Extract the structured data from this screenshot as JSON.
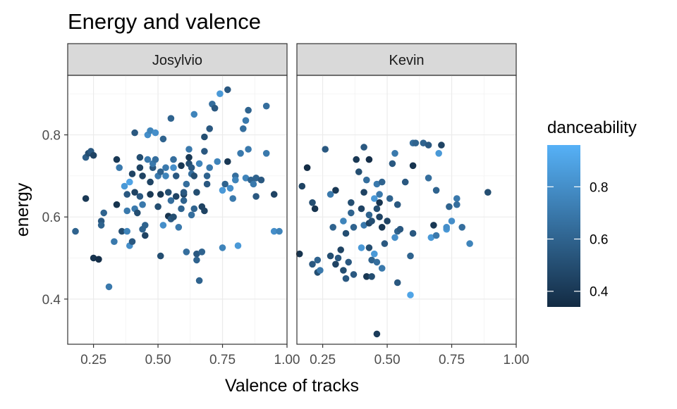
{
  "chart_data": {
    "type": "scatter",
    "title": "Energy and valence",
    "xlabel": "Valence of tracks",
    "ylabel": "energy",
    "xlim": [
      0.15,
      1.0
    ],
    "ylim": [
      0.29,
      0.945
    ],
    "x_ticks": [
      0.25,
      0.5,
      0.75,
      1.0
    ],
    "x_tick_labels": [
      "0.25",
      "0.50",
      "0.75",
      "1.00"
    ],
    "y_ticks": [
      0.4,
      0.6,
      0.8
    ],
    "y_tick_labels": [
      "0.4",
      "0.6",
      "0.8"
    ],
    "grid": true,
    "legend": {
      "title": "danceability",
      "position": "right",
      "type": "colorbar",
      "range": [
        0.34,
        0.96
      ],
      "ticks": [
        0.4,
        0.6,
        0.8
      ],
      "tick_labels": [
        "0.4",
        "0.6",
        "0.8"
      ],
      "low_color": "#132B43",
      "high_color": "#56B1F7"
    },
    "panels": [
      {
        "name": "Josylvio",
        "points": [
          [
            0.18,
            0.565,
            0.6
          ],
          [
            0.22,
            0.745,
            0.58
          ],
          [
            0.22,
            0.645,
            0.4
          ],
          [
            0.23,
            0.755,
            0.5
          ],
          [
            0.24,
            0.76,
            0.55
          ],
          [
            0.25,
            0.75,
            0.45
          ],
          [
            0.25,
            0.5,
            0.38
          ],
          [
            0.27,
            0.497,
            0.36
          ],
          [
            0.28,
            0.59,
            0.55
          ],
          [
            0.28,
            0.58,
            0.6
          ],
          [
            0.29,
            0.61,
            0.6
          ],
          [
            0.31,
            0.43,
            0.7
          ],
          [
            0.33,
            0.54,
            0.7
          ],
          [
            0.34,
            0.74,
            0.4
          ],
          [
            0.34,
            0.63,
            0.38
          ],
          [
            0.35,
            0.72,
            0.7
          ],
          [
            0.36,
            0.565,
            0.5
          ],
          [
            0.37,
            0.675,
            0.85
          ],
          [
            0.38,
            0.655,
            0.55
          ],
          [
            0.38,
            0.615,
            0.7
          ],
          [
            0.38,
            0.565,
            0.75
          ],
          [
            0.39,
            0.53,
            0.8
          ],
          [
            0.39,
            0.685,
            0.9
          ],
          [
            0.4,
            0.705,
            0.45
          ],
          [
            0.4,
            0.54,
            0.55
          ],
          [
            0.41,
            0.66,
            0.45
          ],
          [
            0.41,
            0.805,
            0.55
          ],
          [
            0.41,
            0.62,
            0.7
          ],
          [
            0.42,
            0.61,
            0.5
          ],
          [
            0.43,
            0.745,
            0.5
          ],
          [
            0.43,
            0.72,
            0.45
          ],
          [
            0.43,
            0.65,
            0.55
          ],
          [
            0.44,
            0.7,
            0.45
          ],
          [
            0.44,
            0.63,
            0.7
          ],
          [
            0.44,
            0.57,
            0.6
          ],
          [
            0.45,
            0.555,
            0.45
          ],
          [
            0.45,
            0.58,
            0.6
          ],
          [
            0.46,
            0.74,
            0.7
          ],
          [
            0.46,
            0.8,
            0.8
          ],
          [
            0.47,
            0.81,
            0.75
          ],
          [
            0.47,
            0.685,
            0.45
          ],
          [
            0.47,
            0.655,
            0.4
          ],
          [
            0.48,
            0.72,
            0.55
          ],
          [
            0.48,
            0.73,
            0.7
          ],
          [
            0.49,
            0.805,
            0.8
          ],
          [
            0.49,
            0.74,
            0.65
          ],
          [
            0.5,
            0.7,
            0.7
          ],
          [
            0.5,
            0.625,
            0.5
          ],
          [
            0.51,
            0.71,
            0.6
          ],
          [
            0.51,
            0.655,
            0.4
          ],
          [
            0.51,
            0.505,
            0.5
          ],
          [
            0.52,
            0.79,
            0.6
          ],
          [
            0.52,
            0.58,
            0.8
          ],
          [
            0.53,
            0.72,
            0.7
          ],
          [
            0.53,
            0.7,
            0.75
          ],
          [
            0.54,
            0.66,
            0.5
          ],
          [
            0.54,
            0.602,
            0.38
          ],
          [
            0.55,
            0.84,
            0.6
          ],
          [
            0.55,
            0.64,
            0.65
          ],
          [
            0.55,
            0.595,
            0.55
          ],
          [
            0.56,
            0.72,
            0.8
          ],
          [
            0.56,
            0.74,
            0.65
          ],
          [
            0.56,
            0.6,
            0.5
          ],
          [
            0.57,
            0.7,
            0.55
          ],
          [
            0.57,
            0.65,
            0.45
          ],
          [
            0.58,
            0.575,
            0.7
          ],
          [
            0.59,
            0.725,
            0.4
          ],
          [
            0.59,
            0.62,
            0.6
          ],
          [
            0.6,
            0.655,
            0.45
          ],
          [
            0.6,
            0.66,
            0.55
          ],
          [
            0.6,
            0.64,
            0.6
          ],
          [
            0.61,
            0.68,
            0.65
          ],
          [
            0.61,
            0.515,
            0.65
          ],
          [
            0.62,
            0.765,
            0.7
          ],
          [
            0.62,
            0.73,
            0.5
          ],
          [
            0.62,
            0.745,
            0.4
          ],
          [
            0.63,
            0.72,
            0.55
          ],
          [
            0.63,
            0.705,
            0.65
          ],
          [
            0.63,
            0.605,
            0.65
          ],
          [
            0.64,
            0.85,
            0.75
          ],
          [
            0.64,
            0.7,
            0.5
          ],
          [
            0.64,
            0.62,
            0.6
          ],
          [
            0.65,
            0.66,
            0.5
          ],
          [
            0.65,
            0.51,
            0.55
          ],
          [
            0.65,
            0.495,
            0.6
          ],
          [
            0.66,
            0.73,
            0.75
          ],
          [
            0.66,
            0.445,
            0.6
          ],
          [
            0.67,
            0.625,
            0.45
          ],
          [
            0.67,
            0.515,
            0.6
          ],
          [
            0.68,
            0.795,
            0.5
          ],
          [
            0.68,
            0.76,
            0.55
          ],
          [
            0.68,
            0.615,
            0.45
          ],
          [
            0.69,
            0.7,
            0.6
          ],
          [
            0.69,
            0.68,
            0.55
          ],
          [
            0.7,
            0.815,
            0.55
          ],
          [
            0.7,
            0.72,
            0.7
          ],
          [
            0.71,
            0.875,
            0.65
          ],
          [
            0.72,
            0.865,
            0.55
          ],
          [
            0.73,
            0.735,
            0.75
          ],
          [
            0.74,
            0.9,
            0.85
          ],
          [
            0.75,
            0.665,
            0.85
          ],
          [
            0.75,
            0.525,
            0.75
          ],
          [
            0.76,
            0.68,
            0.6
          ],
          [
            0.77,
            0.91,
            0.55
          ],
          [
            0.77,
            0.735,
            0.4
          ],
          [
            0.78,
            0.67,
            0.8
          ],
          [
            0.79,
            0.645,
            0.7
          ],
          [
            0.8,
            0.7,
            0.65
          ],
          [
            0.8,
            0.69,
            0.75
          ],
          [
            0.81,
            0.53,
            0.85
          ],
          [
            0.82,
            0.755,
            0.7
          ],
          [
            0.83,
            0.815,
            0.65
          ],
          [
            0.84,
            0.695,
            0.75
          ],
          [
            0.84,
            0.835,
            0.7
          ],
          [
            0.85,
            0.86,
            0.6
          ],
          [
            0.85,
            0.765,
            0.7
          ],
          [
            0.86,
            0.69,
            0.6
          ],
          [
            0.87,
            0.68,
            0.7
          ],
          [
            0.88,
            0.695,
            0.6
          ],
          [
            0.88,
            0.65,
            0.55
          ],
          [
            0.9,
            0.69,
            0.55
          ],
          [
            0.92,
            0.87,
            0.65
          ],
          [
            0.92,
            0.755,
            0.7
          ],
          [
            0.95,
            0.655,
            0.45
          ],
          [
            0.95,
            0.565,
            0.8
          ],
          [
            0.97,
            0.565,
            0.75
          ]
        ]
      },
      {
        "name": "Kevin",
        "points": [
          [
            0.16,
            0.51,
            0.38
          ],
          [
            0.17,
            0.675,
            0.45
          ],
          [
            0.19,
            0.72,
            0.35
          ],
          [
            0.21,
            0.635,
            0.5
          ],
          [
            0.21,
            0.485,
            0.55
          ],
          [
            0.22,
            0.62,
            0.38
          ],
          [
            0.23,
            0.495,
            0.6
          ],
          [
            0.23,
            0.465,
            0.5
          ],
          [
            0.24,
            0.47,
            0.7
          ],
          [
            0.26,
            0.765,
            0.55
          ],
          [
            0.28,
            0.505,
            0.5
          ],
          [
            0.28,
            0.655,
            0.7
          ],
          [
            0.29,
            0.575,
            0.6
          ],
          [
            0.3,
            0.665,
            0.4
          ],
          [
            0.3,
            0.485,
            0.45
          ],
          [
            0.31,
            0.5,
            0.55
          ],
          [
            0.32,
            0.52,
            0.45
          ],
          [
            0.33,
            0.47,
            0.5
          ],
          [
            0.33,
            0.59,
            0.75
          ],
          [
            0.34,
            0.45,
            0.55
          ],
          [
            0.34,
            0.56,
            0.5
          ],
          [
            0.35,
            0.49,
            0.55
          ],
          [
            0.36,
            0.61,
            0.6
          ],
          [
            0.36,
            0.635,
            0.5
          ],
          [
            0.37,
            0.46,
            0.55
          ],
          [
            0.37,
            0.575,
            0.6
          ],
          [
            0.38,
            0.74,
            0.4
          ],
          [
            0.39,
            0.71,
            0.5
          ],
          [
            0.4,
            0.62,
            0.45
          ],
          [
            0.4,
            0.525,
            0.85
          ],
          [
            0.41,
            0.77,
            0.55
          ],
          [
            0.41,
            0.58,
            0.7
          ],
          [
            0.41,
            0.66,
            0.45
          ],
          [
            0.42,
            0.455,
            0.4
          ],
          [
            0.42,
            0.69,
            0.65
          ],
          [
            0.43,
            0.525,
            0.5
          ],
          [
            0.43,
            0.605,
            0.6
          ],
          [
            0.43,
            0.585,
            0.45
          ],
          [
            0.43,
            0.74,
            0.36
          ],
          [
            0.44,
            0.455,
            0.5
          ],
          [
            0.44,
            0.59,
            0.5
          ],
          [
            0.44,
            0.495,
            0.6
          ],
          [
            0.45,
            0.645,
            0.85
          ],
          [
            0.45,
            0.51,
            0.85
          ],
          [
            0.46,
            0.49,
            0.65
          ],
          [
            0.46,
            0.315,
            0.42
          ],
          [
            0.46,
            0.68,
            0.7
          ],
          [
            0.46,
            0.62,
            0.5
          ],
          [
            0.47,
            0.635,
            0.38
          ],
          [
            0.47,
            0.6,
            0.45
          ],
          [
            0.47,
            0.655,
            0.7
          ],
          [
            0.48,
            0.575,
            0.4
          ],
          [
            0.48,
            0.685,
            0.6
          ],
          [
            0.48,
            0.475,
            0.7
          ],
          [
            0.49,
            0.535,
            0.55
          ],
          [
            0.5,
            0.59,
            0.45
          ],
          [
            0.51,
            0.645,
            0.6
          ],
          [
            0.52,
            0.73,
            0.55
          ],
          [
            0.53,
            0.55,
            0.8
          ],
          [
            0.53,
            0.755,
            0.7
          ],
          [
            0.54,
            0.565,
            0.6
          ],
          [
            0.54,
            0.44,
            0.55
          ],
          [
            0.54,
            0.63,
            0.55
          ],
          [
            0.55,
            0.57,
            0.55
          ],
          [
            0.57,
            0.685,
            0.55
          ],
          [
            0.59,
            0.41,
            0.9
          ],
          [
            0.59,
            0.505,
            0.6
          ],
          [
            0.6,
            0.78,
            0.65
          ],
          [
            0.6,
            0.725,
            0.38
          ],
          [
            0.6,
            0.56,
            0.55
          ],
          [
            0.61,
            0.78,
            0.6
          ],
          [
            0.64,
            0.78,
            0.6
          ],
          [
            0.66,
            0.695,
            0.65
          ],
          [
            0.66,
            0.775,
            0.55
          ],
          [
            0.67,
            0.55,
            0.85
          ],
          [
            0.68,
            0.58,
            0.4
          ],
          [
            0.69,
            0.555,
            0.7
          ],
          [
            0.69,
            0.665,
            0.6
          ],
          [
            0.7,
            0.755,
            0.85
          ],
          [
            0.71,
            0.775,
            0.45
          ],
          [
            0.73,
            0.57,
            0.85
          ],
          [
            0.73,
            0.575,
            0.8
          ],
          [
            0.74,
            0.625,
            0.6
          ],
          [
            0.75,
            0.59,
            0.8
          ],
          [
            0.77,
            0.645,
            0.7
          ],
          [
            0.77,
            0.63,
            0.65
          ],
          [
            0.79,
            0.575,
            0.65
          ],
          [
            0.82,
            0.535,
            0.75
          ],
          [
            0.89,
            0.66,
            0.5
          ]
        ]
      }
    ]
  }
}
